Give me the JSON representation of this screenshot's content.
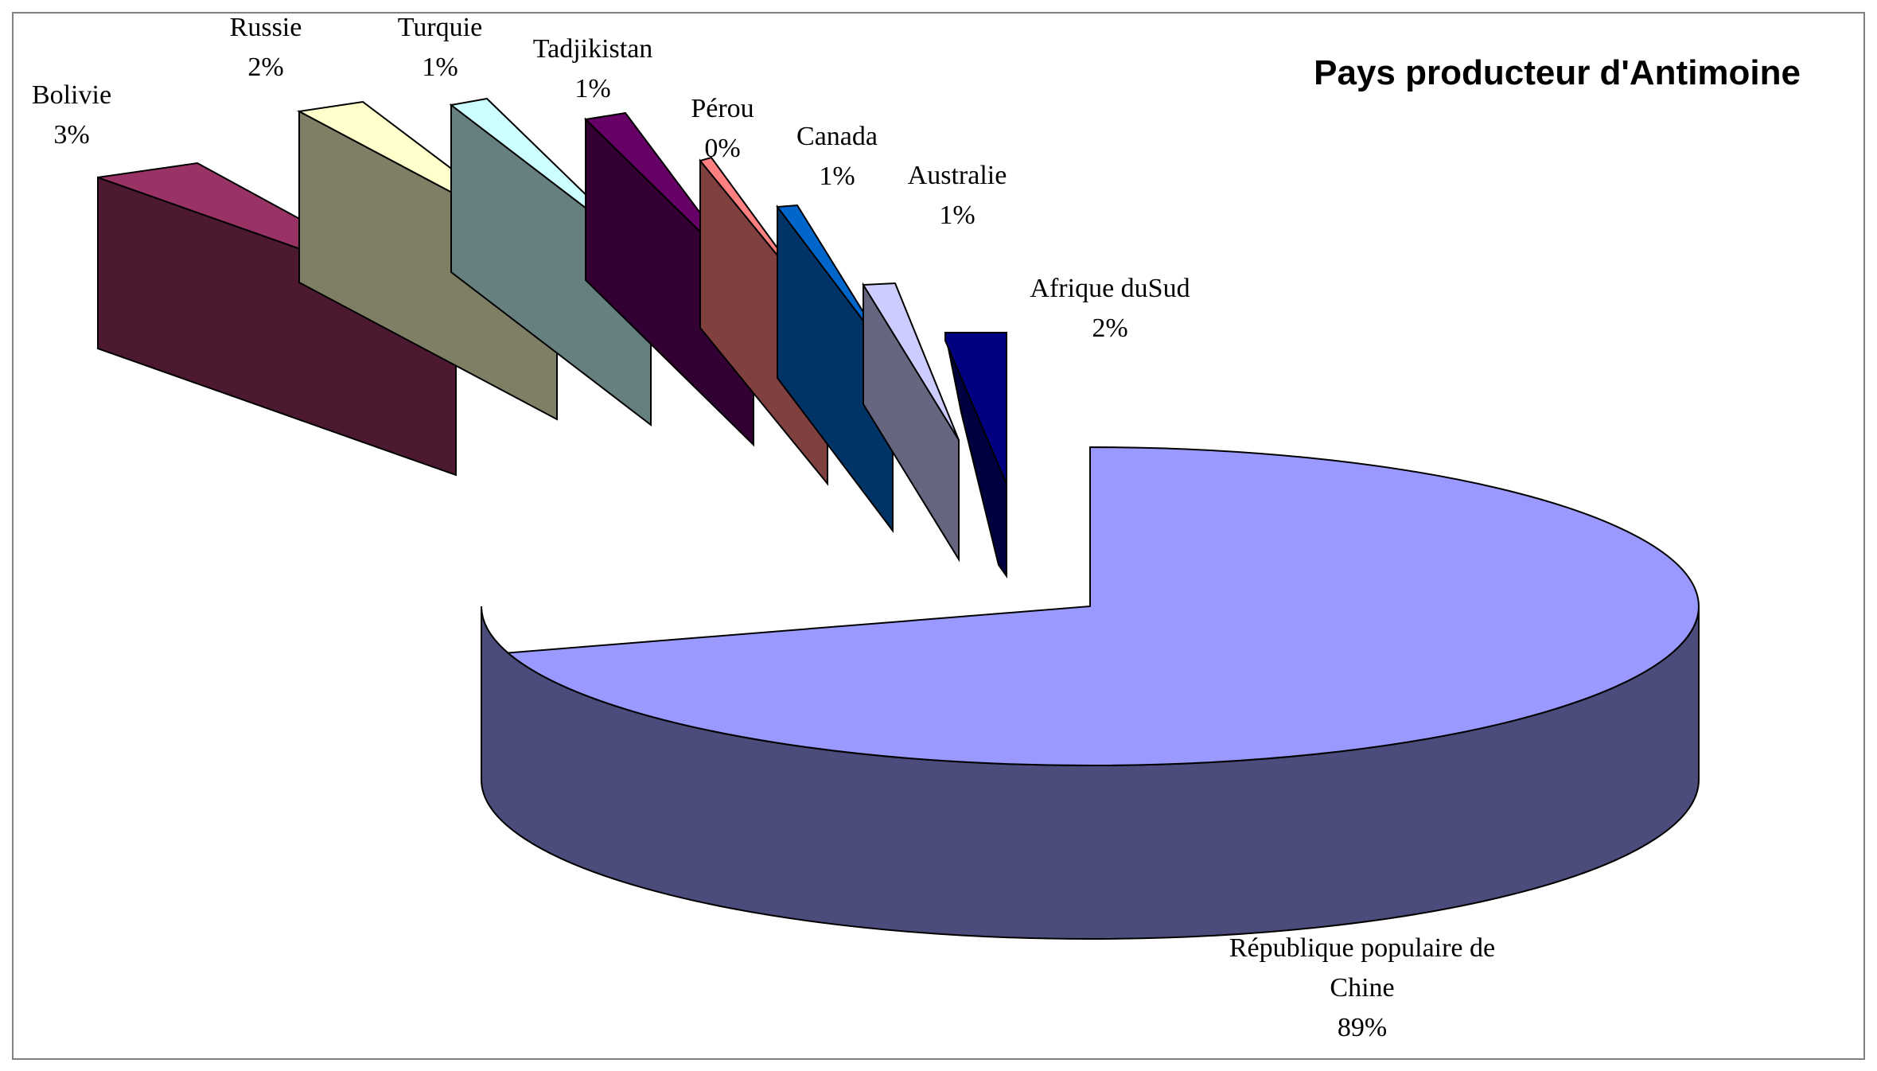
{
  "chart_data": {
    "type": "pie",
    "title": "Pays producteur d'Antimoine",
    "slices": [
      {
        "name": "République populaire de Chine",
        "label_lines": [
          "République populaire de",
          "Chine"
        ],
        "value": 89,
        "value_label": "89%",
        "color": "#9999ff",
        "side_color": "#4b4b7c"
      },
      {
        "name": "Bolivie",
        "label_lines": [
          "Bolivie"
        ],
        "value": 3,
        "value_label": "3%",
        "color": "#993366",
        "side_color": "#4c1931"
      },
      {
        "name": "Russie",
        "label_lines": [
          "Russie"
        ],
        "value": 2,
        "value_label": "2%",
        "color": "#ffffcc",
        "side_color": "#7f7f66"
      },
      {
        "name": "Turquie",
        "label_lines": [
          "Turquie"
        ],
        "value": 1,
        "value_label": "1%",
        "color": "#ccffff",
        "side_color": "#667f7f"
      },
      {
        "name": "Tadjikistan",
        "label_lines": [
          "Tadjikistan"
        ],
        "value": 1,
        "value_label": "1%",
        "color": "#660066",
        "side_color": "#330033"
      },
      {
        "name": "Pérou",
        "label_lines": [
          "Pérou"
        ],
        "value": 0,
        "value_label": "0%",
        "color": "#ff8080",
        "side_color": "#804040"
      },
      {
        "name": "Canada",
        "label_lines": [
          "Canada"
        ],
        "value": 1,
        "value_label": "1%",
        "color": "#0066cc",
        "side_color": "#003366"
      },
      {
        "name": "Australie",
        "label_lines": [
          "Australie"
        ],
        "value": 1,
        "value_label": "1%",
        "color": "#ccccff",
        "side_color": "#666680"
      },
      {
        "name": "Afrique du Sud",
        "label_lines": [
          "Afrique duSud"
        ],
        "value": 2,
        "value_label": "2%",
        "color": "#000080",
        "side_color": "#000040"
      }
    ],
    "style": "3d-exploded-pie",
    "legend": "none"
  }
}
